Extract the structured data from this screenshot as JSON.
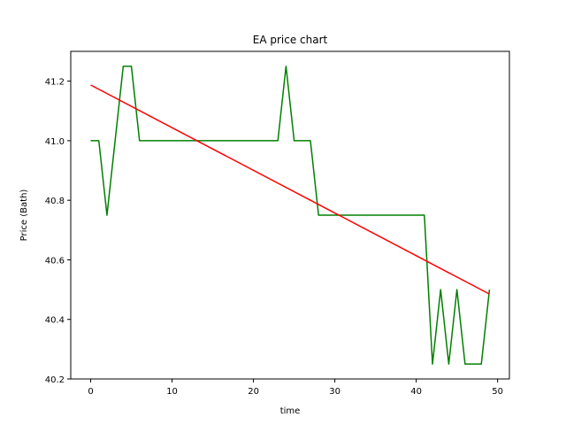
{
  "chart_data": {
    "type": "line",
    "title": "EA price chart",
    "xlabel": "time",
    "ylabel": "Price (Bath)",
    "xlim": [
      -2.45,
      51.45
    ],
    "ylim": [
      40.2,
      41.3
    ],
    "xticks": [
      0,
      10,
      20,
      30,
      40,
      50
    ],
    "yticks": [
      40.2,
      40.4,
      40.6,
      40.8,
      41.0,
      41.2
    ],
    "grid": false,
    "legend": "none",
    "series": [
      {
        "color": "#008000",
        "x": [
          0,
          1,
          2,
          3,
          4,
          5,
          6,
          7,
          8,
          9,
          10,
          11,
          12,
          13,
          14,
          15,
          16,
          17,
          18,
          19,
          20,
          21,
          22,
          23,
          24,
          25,
          26,
          27,
          28,
          29,
          30,
          31,
          32,
          33,
          34,
          35,
          36,
          37,
          38,
          39,
          40,
          41,
          42,
          43,
          44,
          45,
          46,
          47,
          48,
          49
        ],
        "y": [
          41.0,
          41.0,
          40.75,
          41.0,
          41.25,
          41.25,
          41.0,
          41.0,
          41.0,
          41.0,
          41.0,
          41.0,
          41.0,
          41.0,
          41.0,
          41.0,
          41.0,
          41.0,
          41.0,
          41.0,
          41.0,
          41.0,
          41.0,
          41.0,
          41.25,
          41.0,
          41.0,
          41.0,
          40.75,
          40.75,
          40.75,
          40.75,
          40.75,
          40.75,
          40.75,
          40.75,
          40.75,
          40.75,
          40.75,
          40.75,
          40.75,
          40.75,
          40.25,
          40.5,
          40.25,
          40.5,
          40.25,
          40.25,
          40.25,
          40.5
        ]
      },
      {
        "color": "#ff0000",
        "x": [
          0,
          49
        ],
        "y": [
          41.187,
          40.485
        ]
      }
    ]
  }
}
